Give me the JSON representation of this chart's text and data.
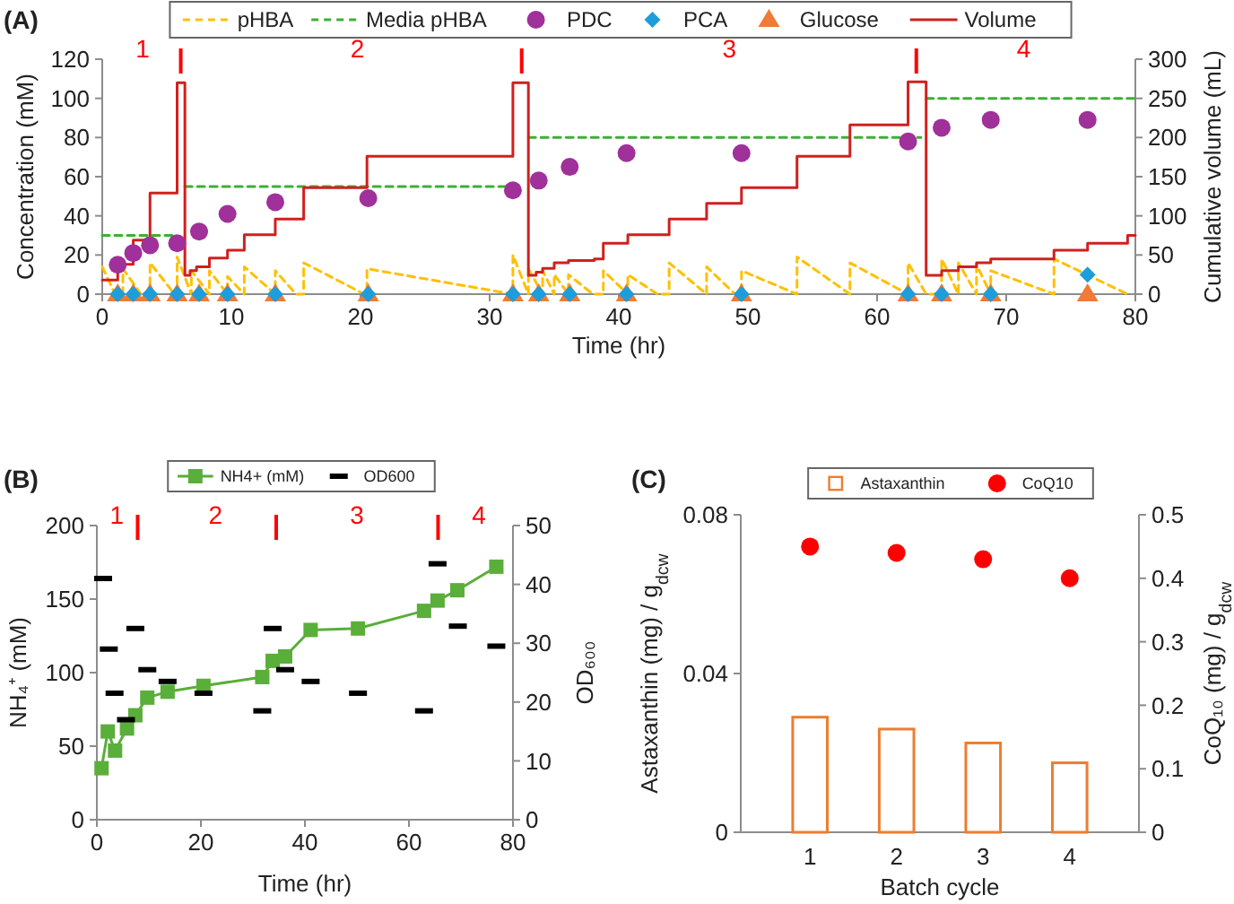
{
  "chart_data": [
    {
      "type": "line",
      "title": "(A)",
      "xlabel": "Time (hr)",
      "ylabel": "Concentration (mM)",
      "y2label": "Cumulative volume (mL)",
      "xlim": [
        0,
        80
      ],
      "xticks": [
        0,
        10,
        20,
        30,
        40,
        50,
        60,
        70,
        80
      ],
      "ylim": [
        0,
        120
      ],
      "yticks": [
        0,
        20,
        40,
        60,
        80,
        100,
        120
      ],
      "y2lim": [
        0,
        300
      ],
      "y2ticks": [
        0,
        50,
        100,
        150,
        200,
        250,
        300
      ],
      "legend": "top",
      "annotations": [
        "1",
        "2",
        "3",
        "4"
      ],
      "series": [
        {
          "name": "pHBA",
          "color": "#ffc000",
          "line_style": "dashed",
          "x": [
            0,
            1.0,
            1.6,
            1.6,
            3.0,
            3.7,
            3.7,
            5.6,
            5.8,
            5.8,
            6.9,
            6.9,
            8.3,
            8.3,
            9.7,
            9.7,
            11.0,
            11.0,
            13.4,
            13.4,
            15.0,
            15.6,
            15.6,
            20.3,
            20.5,
            20.5,
            31.8,
            31.8,
            33.0,
            33.0,
            34.1,
            34.1,
            35.0,
            35.0,
            36.1,
            36.1,
            38.0,
            38.8,
            38.8,
            40.7,
            40.7,
            43.0,
            43.9,
            43.9,
            46.8,
            46.8,
            49.0,
            49.5,
            49.5,
            53.8,
            53.8,
            57.9,
            57.9,
            62.4,
            62.4,
            63.8,
            65.0,
            65.0,
            66.3,
            66.3,
            67.7,
            67.7,
            68.8,
            68.8,
            73.7,
            73.7,
            79.4
          ],
          "values": [
            14,
            0,
            0,
            13,
            0,
            0,
            16,
            0,
            0,
            19,
            0,
            12,
            0,
            12,
            0,
            9,
            0,
            14,
            0,
            12,
            0,
            0,
            16,
            0,
            0,
            13,
            0,
            20,
            0,
            13,
            0,
            12,
            0,
            10,
            0,
            10,
            0,
            0,
            12,
            0,
            10,
            0,
            0,
            16,
            0,
            14,
            0,
            0,
            12,
            0,
            19,
            0,
            16,
            0,
            16,
            0,
            0,
            18,
            0,
            16,
            0,
            15,
            0,
            12,
            0,
            18,
            0
          ]
        },
        {
          "name": "Media pHBA",
          "color": "#3cb034",
          "line_style": "dashed",
          "x": [
            0,
            5.8,
            6.1,
            6.4,
            31.8,
            32.4,
            33.0,
            63.4,
            63.6,
            63.8,
            80
          ],
          "values": [
            30,
            30,
            null,
            55,
            55,
            null,
            80,
            80,
            null,
            100,
            100
          ]
        },
        {
          "name": "PDC",
          "type": "scatter",
          "color": "#a0309a",
          "marker": "circle",
          "x": [
            1.2,
            2.4,
            3.7,
            5.8,
            7.5,
            9.7,
            13.4,
            20.6,
            31.8,
            33.8,
            36.2,
            40.6,
            49.5,
            62.4,
            65.0,
            68.8,
            76.3
          ],
          "values": [
            15,
            21,
            25,
            26,
            32,
            41,
            47,
            49,
            53,
            58,
            65,
            72,
            72,
            78,
            85,
            89,
            89
          ]
        },
        {
          "name": "PCA",
          "type": "scatter",
          "color": "#1d9ddb",
          "marker": "diamond",
          "x": [
            1.2,
            2.4,
            3.7,
            5.8,
            7.5,
            9.7,
            13.4,
            20.6,
            31.8,
            33.8,
            36.2,
            40.6,
            49.5,
            62.4,
            65.0,
            68.8,
            76.3
          ],
          "values": [
            0,
            0,
            0,
            0,
            0,
            0,
            0,
            0,
            0,
            0,
            0,
            0,
            0,
            0,
            0,
            0,
            10
          ]
        },
        {
          "name": "Glucose",
          "type": "scatter",
          "color": "#ee7b36",
          "marker": "triangle",
          "x": [
            1.2,
            2.4,
            3.7,
            5.8,
            7.5,
            9.7,
            13.4,
            20.6,
            31.8,
            33.8,
            36.2,
            40.6,
            49.5,
            62.4,
            65.0,
            68.8,
            76.3
          ],
          "values": [
            0,
            0,
            0,
            0,
            0,
            0,
            0,
            0,
            0,
            0,
            0,
            0,
            0,
            0,
            0,
            0,
            0
          ]
        },
        {
          "name": "Volume",
          "type": "step",
          "axis": "y2",
          "color": "#d0201e",
          "x": [
            0,
            1.2,
            2.4,
            3.7,
            5.8,
            6.4,
            6.8,
            7.3,
            8.3,
            9.7,
            11.0,
            13.4,
            15.6,
            20.5,
            31.8,
            33.0,
            33.6,
            34.1,
            35.0,
            36.1,
            38.1,
            38.8,
            40.7,
            43.9,
            46.8,
            49.5,
            53.8,
            57.9,
            62.4,
            63.8,
            65.0,
            66.3,
            67.7,
            68.8,
            73.7,
            76.3,
            79.4,
            80
          ],
          "values": [
            18,
            38,
            69,
            129,
            270,
            24,
            30,
            35,
            46,
            56,
            76,
            96,
            136,
            176,
            270,
            24,
            28,
            33,
            40,
            43,
            45,
            65,
            76,
            96,
            116,
            136,
            176,
            216,
            271,
            24,
            30,
            35,
            40,
            45,
            56,
            65,
            75,
            75
          ]
        }
      ]
    },
    {
      "type": "line",
      "title": "(B)",
      "xlabel": "Time (hr)",
      "ylabel": "NH₄⁺ (mM)",
      "y2label": "OD₆₀₀",
      "xlim": [
        0,
        80
      ],
      "xticks": [
        0,
        20,
        40,
        60,
        80
      ],
      "ylim": [
        0,
        200
      ],
      "yticks": [
        0,
        50,
        100,
        150,
        200
      ],
      "y2lim": [
        0,
        50
      ],
      "y2ticks": [
        0,
        10,
        20,
        30,
        40,
        50
      ],
      "legend": "top",
      "annotations": [
        "1",
        "2",
        "3",
        "4"
      ],
      "series": [
        {
          "name": "NH4+ (mM)",
          "color": "#5aae3a",
          "marker": "square",
          "x": [
            0.9,
            2.1,
            3.5,
            5.8,
            7.4,
            9.7,
            13.6,
            20.5,
            31.8,
            33.8,
            36.2,
            41.1,
            50.2,
            62.9,
            65.5,
            69.3,
            76.8
          ],
          "values": [
            35,
            60,
            47,
            62,
            71,
            83,
            87,
            91,
            97,
            108,
            111,
            129,
            130,
            142,
            149,
            156,
            172
          ]
        },
        {
          "name": "OD600",
          "type": "scatter",
          "axis": "y2",
          "color": "#000000",
          "x": [
            1.2,
            2.3,
            3.4,
            5.6,
            7.4,
            9.7,
            13.6,
            20.5,
            31.8,
            33.8,
            36.2,
            41.1,
            50.2,
            62.9,
            65.5,
            69.4,
            76.8
          ],
          "values": [
            41,
            29,
            21.5,
            17,
            32.5,
            25.5,
            23.5,
            21.5,
            18.5,
            32.5,
            25.5,
            23.5,
            21.5,
            18.5,
            43.5,
            32.9,
            29.5
          ]
        }
      ]
    },
    {
      "type": "bar",
      "title": "(C)",
      "xlabel": "Batch cycle",
      "ylabel": "Astaxanthin (mg) / g$_{dcw}$",
      "y2label": "CoQ₁₀ (mg) / g$_{dcw}$",
      "categories": [
        "1",
        "2",
        "3",
        "4"
      ],
      "ylim": [
        0,
        0.08
      ],
      "yticks": [
        0,
        0.04,
        0.08
      ],
      "y2lim": [
        0,
        0.5
      ],
      "y2ticks": [
        0,
        0.1,
        0.2,
        0.3,
        0.4,
        0.5
      ],
      "legend": "top",
      "series": [
        {
          "name": "Astaxanthin",
          "color": "#ed7d31",
          "values": [
            0.029,
            0.026,
            0.0225,
            0.0175
          ]
        },
        {
          "name": "CoQ10",
          "type": "scatter",
          "axis": "y2",
          "color": "#ff0000",
          "marker": "circle",
          "values": [
            0.45,
            0.44,
            0.43,
            0.4
          ]
        }
      ]
    }
  ]
}
